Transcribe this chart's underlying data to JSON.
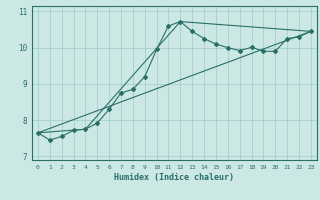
{
  "xlabel": "Humidex (Indice chaleur)",
  "background_color": "#cce8e4",
  "grid_color": "#a8cecc",
  "line_color": "#2a6e6a",
  "xlim": [
    -0.5,
    23.5
  ],
  "ylim": [
    6.9,
    11.15
  ],
  "yticks": [
    7,
    8,
    9,
    10,
    11
  ],
  "xticks": [
    0,
    1,
    2,
    3,
    4,
    5,
    6,
    7,
    8,
    9,
    10,
    11,
    12,
    13,
    14,
    15,
    16,
    17,
    18,
    19,
    20,
    21,
    22,
    23
  ],
  "series1_x": [
    0,
    1,
    2,
    3,
    4,
    5,
    6,
    7,
    8,
    9,
    10,
    11,
    12,
    13,
    14,
    15,
    16,
    17,
    18,
    19,
    20,
    21,
    22,
    23
  ],
  "series1_y": [
    7.65,
    7.45,
    7.55,
    7.72,
    7.75,
    7.92,
    8.3,
    8.75,
    8.85,
    9.2,
    9.95,
    10.6,
    10.72,
    10.45,
    10.25,
    10.1,
    10.0,
    9.92,
    10.01,
    9.9,
    9.9,
    10.25,
    10.3,
    10.45
  ],
  "series2_x": [
    0,
    4,
    12,
    23
  ],
  "series2_y": [
    7.65,
    7.75,
    10.72,
    10.45
  ],
  "series3_x": [
    0,
    23
  ],
  "series3_y": [
    7.65,
    10.45
  ]
}
